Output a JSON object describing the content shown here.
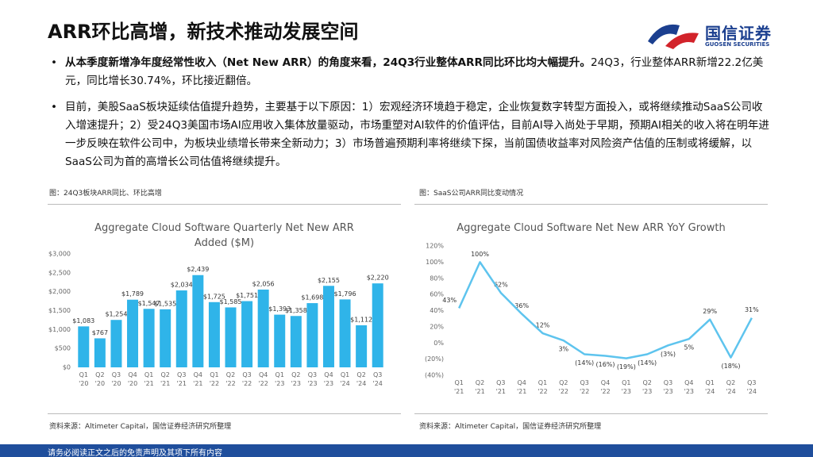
{
  "header": {
    "title": "ARR环比高增，新技术推动发展空间",
    "logo_cn": "国信证券",
    "logo_en": "GUOSEN SECURITIES"
  },
  "bullets": [
    {
      "bold": "从本季度新增净年度经常性收入（Net New ARR）的角度来看，24Q3行业整体ARR同比环比均大幅提升。",
      "text": "24Q3，行业整体ARR新增22.2亿美元，同比增长30.74%，环比接近翻倍。"
    },
    {
      "text": "目前，美股SaaS板块延续估值提升趋势，主要基于以下原因：1）宏观经济环境趋于稳定，企业恢复数字转型方面投入，或将继续推动SaaS公司收入增速提升；2）受24Q3美国市场AI应用收入集体放量驱动，市场重塑对AI软件的价值评估，目前AI导入尚处于早期，预期AI相关的收入将在明年进一步反映在软件公司中，为板块业绩增长带来全新动力；3）市场普遍预期利率将继续下探，当前国债收益率对风险资产估值的压制或将缓解，以SaaS公司为首的高增长公司估值将继续提升。"
    }
  ],
  "figures": [
    {
      "caption": "图：24Q3板块ARR同比、环比高增",
      "source": "资料来源：Altimeter Capital，国信证券经济研究所整理"
    },
    {
      "caption": "图：SaaS公司ARR同比变动情况",
      "source": "资料来源：Altimeter Capital，国信证券经济研究所整理"
    }
  ],
  "chart_data": [
    {
      "type": "bar",
      "title": "Aggregate Cloud Software Quarterly Net New ARR Added ($M)",
      "color": "#2fb4e9",
      "categories": [
        "Q1 '20",
        "Q2 '20",
        "Q3 '20",
        "Q4 '20",
        "Q1 '21",
        "Q2 '21",
        "Q3 '21",
        "Q4 '21",
        "Q1 '22",
        "Q2 '22",
        "Q3 '22",
        "Q4 '22",
        "Q1 '23",
        "Q2 '23",
        "Q3 '23",
        "Q4 '23",
        "Q1 '24",
        "Q2 '24",
        "Q3 '24"
      ],
      "values": [
        1083,
        767,
        1254,
        1789,
        1547,
        1535,
        2034,
        2439,
        1725,
        1585,
        1751,
        2056,
        1393,
        1358,
        1698,
        2155,
        1796,
        1112,
        2220
      ],
      "value_labels": [
        "$1,083",
        "$767",
        "$1,254",
        "$1,789",
        "$1,547",
        "$1,535",
        "$2,034",
        "$2,439",
        "$1,725",
        "$1,585",
        "$1,751",
        "$2,056",
        "$1,393",
        "$1,358",
        "$1,698",
        "$2,155",
        "$1,796",
        "$1,112",
        "$2,220"
      ],
      "ylim": [
        0,
        3000
      ],
      "yticks": [
        {
          "value": 0,
          "label": "$0"
        },
        {
          "value": 500,
          "label": "$500"
        },
        {
          "value": 1000,
          "label": "$1,000"
        },
        {
          "value": 1500,
          "label": "$1,500"
        },
        {
          "value": 2000,
          "label": "$2,000"
        },
        {
          "value": 2500,
          "label": "$2,500"
        },
        {
          "value": 3000,
          "label": "$3,000"
        }
      ],
      "grid": false
    },
    {
      "type": "line",
      "title": "Aggregate Cloud Software Net New ARR YoY Growth",
      "color": "#5ec4ee",
      "categories": [
        "Q1 '21",
        "Q2 '21",
        "Q3 '21",
        "Q4 '21",
        "Q1 '22",
        "Q2 '22",
        "Q3 '22",
        "Q4 '22",
        "Q1 '23",
        "Q2 '23",
        "Q3 '23",
        "Q4 '23",
        "Q1 '24",
        "Q2 '24",
        "Q3 '24"
      ],
      "values": [
        43,
        100,
        62,
        36,
        12,
        3,
        -14,
        -16,
        -19,
        -14,
        -3,
        5,
        29,
        -18,
        31
      ],
      "value_labels": [
        "43%",
        "100%",
        "62%",
        "36%",
        "12%",
        "3%",
        "(14%)",
        "(16%)",
        "(19%)",
        "(14%)",
        "(3%)",
        "5%",
        "29%",
        "(18%)",
        "31%"
      ],
      "ylim": [
        -40,
        120
      ],
      "yticks": [
        {
          "value": -40,
          "label": "(40%)"
        },
        {
          "value": -20,
          "label": "(20%)"
        },
        {
          "value": 0,
          "label": "0%"
        },
        {
          "value": 20,
          "label": "20%"
        },
        {
          "value": 40,
          "label": "40%"
        },
        {
          "value": 60,
          "label": "60%"
        },
        {
          "value": 80,
          "label": "80%"
        },
        {
          "value": 100,
          "label": "100%"
        },
        {
          "value": 120,
          "label": "120%"
        }
      ],
      "grid": false
    }
  ],
  "footer": "请务必阅读正文之后的免责声明及其项下所有内容"
}
